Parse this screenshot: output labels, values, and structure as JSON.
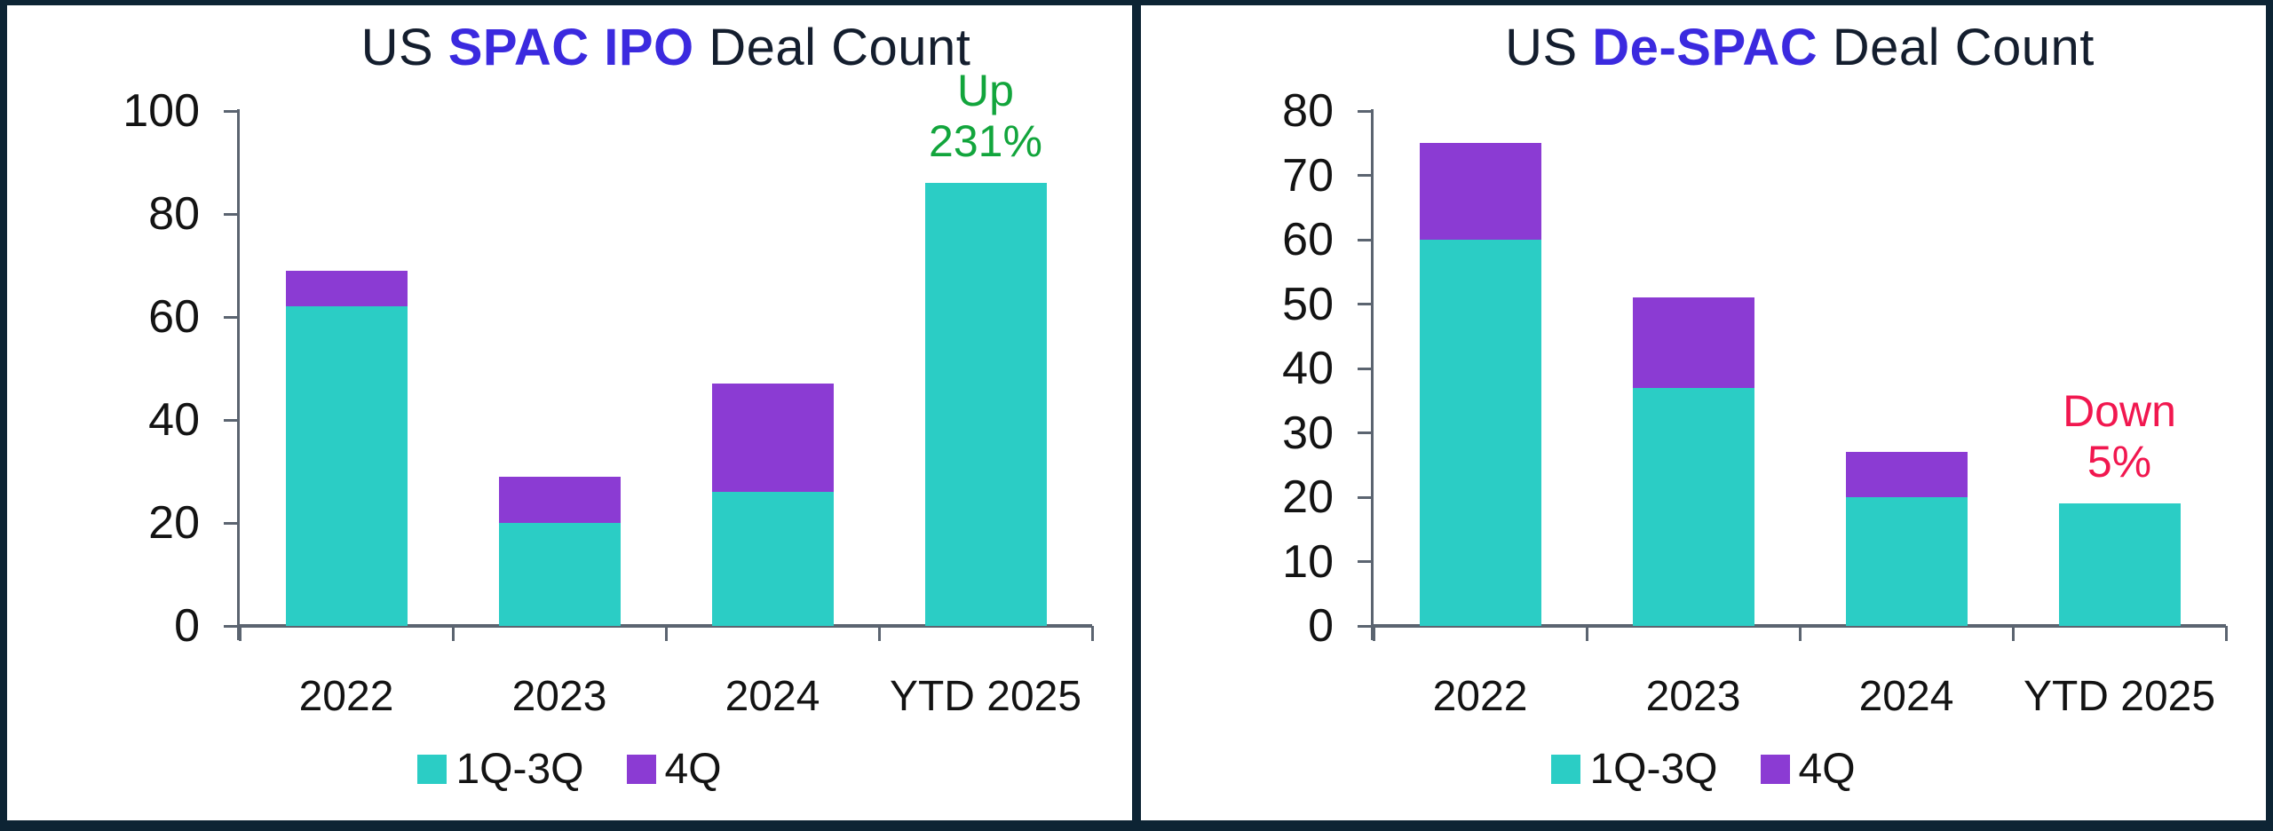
{
  "colors": {
    "teal": "#2BCDC5",
    "purple": "#8B3BD3",
    "accent_blue": "#3B2ADF",
    "title_text": "#141E2E",
    "axis": "#5B6470",
    "label_text": "#131313",
    "up_green": "#12A53C",
    "down_red": "#F1174F",
    "frame_navy": "#0D2434",
    "panel_bg": "#FFFFFF"
  },
  "chart_data": [
    {
      "type": "bar",
      "stacked": true,
      "title_parts": {
        "prefix": "US ",
        "accent": "SPAC IPO",
        "suffix": " Deal Count"
      },
      "title_full": "US SPAC IPO Deal Count",
      "categories": [
        "2022",
        "2023",
        "2024",
        "YTD 2025"
      ],
      "series": [
        {
          "name": "1Q-3Q",
          "color_key": "teal",
          "values": [
            62,
            20,
            26,
            86
          ]
        },
        {
          "name": "4Q",
          "color_key": "purple",
          "values": [
            7,
            9,
            21,
            0
          ]
        }
      ],
      "totals": [
        69,
        29,
        47,
        86
      ],
      "ylim": [
        0,
        100
      ],
      "ytick_step": 20,
      "yticks": [
        0,
        20,
        40,
        60,
        80,
        100
      ],
      "grid": false,
      "legend_position": "bottom",
      "annotation": {
        "line1": "Up",
        "line2": "231%",
        "color_key": "up_green",
        "target_category": "YTD 2025"
      }
    },
    {
      "type": "bar",
      "stacked": true,
      "title_parts": {
        "prefix": "US ",
        "accent": "De-SPAC",
        "suffix": " Deal Count"
      },
      "title_full": "US De-SPAC Deal Count",
      "categories": [
        "2022",
        "2023",
        "2024",
        "YTD 2025"
      ],
      "series": [
        {
          "name": "1Q-3Q",
          "color_key": "teal",
          "values": [
            60,
            37,
            20,
            19
          ]
        },
        {
          "name": "4Q",
          "color_key": "purple",
          "values": [
            15,
            14,
            7,
            0
          ]
        }
      ],
      "totals": [
        75,
        51,
        27,
        19
      ],
      "ylim": [
        0,
        80
      ],
      "ytick_step": 10,
      "yticks": [
        0,
        10,
        20,
        30,
        40,
        50,
        60,
        70,
        80
      ],
      "grid": false,
      "legend_position": "bottom",
      "annotation": {
        "line1": "Down",
        "line2": "5%",
        "color_key": "down_red",
        "target_category": "YTD 2025"
      }
    }
  ]
}
